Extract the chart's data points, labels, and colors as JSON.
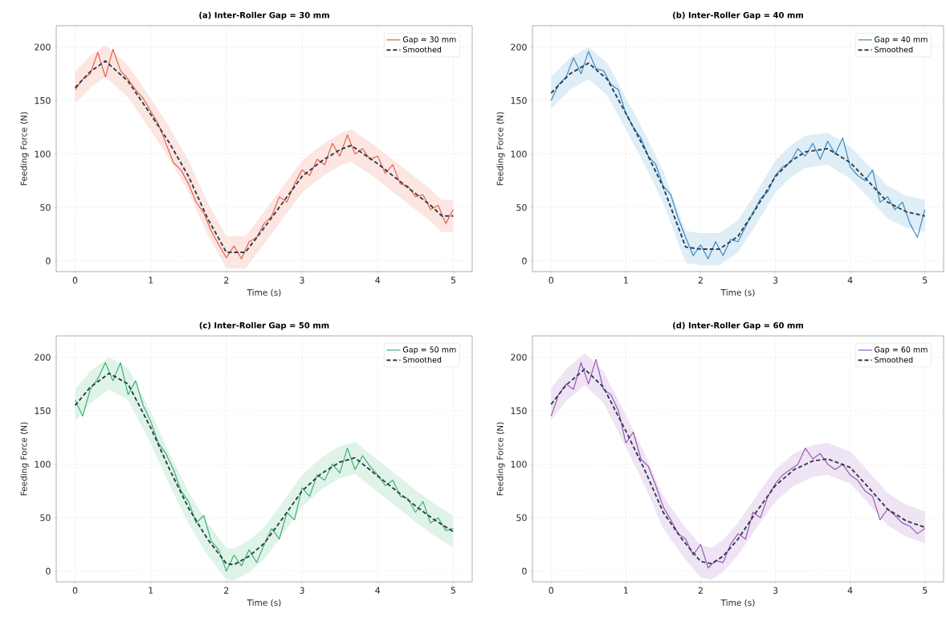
{
  "chart_data": [
    {
      "type": "line",
      "title": "(a) Inter-Roller Gap = 30 mm",
      "xlabel": "Time (s)",
      "ylabel": "Feeding Force (N)",
      "x": [
        0,
        0.1,
        0.2,
        0.3,
        0.4,
        0.5,
        0.6,
        0.7,
        0.8,
        0.9,
        1.0,
        1.1,
        1.2,
        1.3,
        1.4,
        1.5,
        1.6,
        1.7,
        1.8,
        1.9,
        2.0,
        2.1,
        2.2,
        2.3,
        2.4,
        2.5,
        2.6,
        2.7,
        2.8,
        2.9,
        3.0,
        3.1,
        3.2,
        3.3,
        3.4,
        3.5,
        3.6,
        3.7,
        3.8,
        3.9,
        4.0,
        4.1,
        4.2,
        4.3,
        4.4,
        4.5,
        4.6,
        4.7,
        4.8,
        4.9,
        5.0
      ],
      "series": [
        {
          "name": "Gap = 30 mm",
          "color": "#e8604c",
          "values": [
            160,
            170,
            175,
            195,
            172,
            198,
            178,
            170,
            160,
            152,
            140,
            128,
            110,
            92,
            85,
            72,
            55,
            45,
            28,
            15,
            3,
            14,
            2,
            18,
            22,
            35,
            42,
            60,
            55,
            72,
            85,
            80,
            95,
            90,
            110,
            98,
            118,
            100,
            105,
            95,
            98,
            82,
            90,
            72,
            70,
            60,
            62,
            48,
            52,
            35,
            48
          ]
        },
        {
          "name": "Smoothed",
          "color": "#2c3e50",
          "line_style": "dashed",
          "x": [
            0,
            0.2,
            0.4,
            0.7,
            1,
            1.25,
            1.5,
            1.75,
            2,
            2.25,
            2.5,
            2.75,
            3,
            3.25,
            3.5,
            3.65,
            4,
            4.25,
            4.5,
            4.7,
            4.85,
            5
          ],
          "values": [
            162,
            177,
            187,
            168,
            137,
            110,
            79,
            40,
            8,
            8,
            31,
            55,
            79,
            93,
            104,
            108,
            91,
            77,
            63,
            52,
            42,
            42
          ],
          "lower": [
            147,
            162,
            172,
            153,
            122,
            95,
            64,
            25,
            -7,
            -7,
            16,
            40,
            64,
            78,
            89,
            93,
            76,
            62,
            48,
            37,
            27,
            27
          ],
          "upper": [
            177,
            192,
            202,
            183,
            152,
            125,
            94,
            55,
            23,
            23,
            46,
            70,
            94,
            108,
            119,
            123,
            106,
            92,
            78,
            67,
            57,
            57
          ]
        }
      ],
      "xlim": [
        -0.25,
        5.25
      ],
      "ylim": [
        -10,
        220
      ],
      "xticks": [
        0,
        1,
        2,
        3,
        4,
        5
      ],
      "yticks": [
        0,
        50,
        100,
        150,
        200
      ],
      "grid": true,
      "legend": "top right",
      "marker": "none"
    },
    {
      "type": "line",
      "title": "(b) Inter-Roller Gap = 40 mm",
      "xlabel": "Time (s)",
      "ylabel": "Feeding Force (N)",
      "x": [
        0,
        0.1,
        0.2,
        0.3,
        0.4,
        0.5,
        0.6,
        0.7,
        0.8,
        0.9,
        1.0,
        1.1,
        1.2,
        1.3,
        1.4,
        1.5,
        1.6,
        1.7,
        1.8,
        1.9,
        2.0,
        2.1,
        2.2,
        2.3,
        2.4,
        2.5,
        2.6,
        2.7,
        2.8,
        2.9,
        3.0,
        3.1,
        3.2,
        3.3,
        3.4,
        3.5,
        3.6,
        3.7,
        3.8,
        3.9,
        4.0,
        4.1,
        4.2,
        4.3,
        4.4,
        4.5,
        4.6,
        4.7,
        4.8,
        4.9,
        5.0
      ],
      "series": [
        {
          "name": "Gap = 40 mm",
          "color": "#3a8cc4",
          "values": [
            150,
            165,
            172,
            190,
            175,
            196,
            180,
            178,
            165,
            160,
            138,
            125,
            115,
            98,
            90,
            70,
            62,
            40,
            22,
            5,
            15,
            2,
            18,
            5,
            20,
            18,
            32,
            45,
            58,
            65,
            80,
            88,
            92,
            105,
            98,
            110,
            95,
            112,
            100,
            115,
            88,
            80,
            75,
            85,
            55,
            60,
            48,
            55,
            35,
            22,
            48
          ]
        },
        {
          "name": "Smoothed",
          "color": "#2c3e50",
          "line_style": "dashed",
          "x": [
            0,
            0.25,
            0.5,
            0.75,
            1,
            1.25,
            1.5,
            1.8,
            2,
            2.25,
            2.5,
            2.75,
            3,
            3.2,
            3.4,
            3.7,
            4,
            4.25,
            4.5,
            4.75,
            5
          ],
          "values": [
            157,
            175,
            185,
            170,
            138,
            105,
            69,
            13,
            11,
            11,
            23,
            50,
            79,
            93,
            102,
            105,
            92,
            74,
            55,
            46,
            42
          ],
          "lower": [
            142,
            160,
            170,
            155,
            123,
            90,
            54,
            -2,
            -4,
            -4,
            8,
            35,
            64,
            78,
            87,
            90,
            77,
            59,
            40,
            31,
            27
          ],
          "upper": [
            172,
            190,
            200,
            185,
            153,
            120,
            84,
            28,
            26,
            26,
            38,
            65,
            94,
            108,
            117,
            120,
            107,
            89,
            70,
            61,
            57
          ]
        }
      ],
      "xlim": [
        -0.25,
        5.25
      ],
      "ylim": [
        -10,
        220
      ],
      "xticks": [
        0,
        1,
        2,
        3,
        4,
        5
      ],
      "yticks": [
        0,
        50,
        100,
        150,
        200
      ],
      "grid": true,
      "legend": "top right",
      "marker": "none"
    },
    {
      "type": "line",
      "title": "(c) Inter-Roller Gap = 50 mm",
      "xlabel": "Time (s)",
      "ylabel": "Feeding Force (N)",
      "x": [
        0,
        0.1,
        0.2,
        0.3,
        0.4,
        0.5,
        0.6,
        0.7,
        0.8,
        0.9,
        1.0,
        1.1,
        1.2,
        1.3,
        1.4,
        1.5,
        1.6,
        1.7,
        1.8,
        1.9,
        2.0,
        2.1,
        2.2,
        2.3,
        2.4,
        2.5,
        2.6,
        2.7,
        2.8,
        2.9,
        3.0,
        3.1,
        3.2,
        3.3,
        3.4,
        3.5,
        3.6,
        3.7,
        3.8,
        3.9,
        4.0,
        4.1,
        4.2,
        4.3,
        4.4,
        4.5,
        4.6,
        4.7,
        4.8,
        4.9,
        5.0
      ],
      "series": [
        {
          "name": "Gap = 50 mm",
          "color": "#3cb371",
          "values": [
            160,
            145,
            170,
            180,
            195,
            178,
            195,
            165,
            178,
            155,
            140,
            120,
            110,
            95,
            75,
            65,
            45,
            52,
            28,
            20,
            0,
            15,
            5,
            20,
            8,
            25,
            40,
            30,
            55,
            48,
            78,
            70,
            90,
            85,
            100,
            92,
            115,
            95,
            108,
            98,
            90,
            80,
            85,
            70,
            68,
            55,
            65,
            45,
            50,
            38,
            40
          ]
        },
        {
          "name": "Smoothed",
          "color": "#2c3e50",
          "line_style": "dashed",
          "x": [
            0,
            0.2,
            0.45,
            0.7,
            1,
            1.25,
            1.5,
            1.75,
            2,
            2.1,
            2.3,
            2.5,
            2.75,
            3,
            3.25,
            3.5,
            3.7,
            4,
            4.25,
            4.5,
            4.75,
            5
          ],
          "values": [
            155,
            172,
            185,
            175,
            134,
            95,
            59,
            30,
            7,
            6,
            14,
            26,
            50,
            75,
            91,
            102,
            106,
            89,
            75,
            61,
            48,
            37
          ],
          "lower": [
            140,
            157,
            170,
            160,
            119,
            80,
            44,
            15,
            -8,
            -9,
            -1,
            11,
            35,
            60,
            76,
            87,
            91,
            74,
            60,
            46,
            33,
            22
          ],
          "upper": [
            170,
            187,
            200,
            190,
            149,
            110,
            74,
            45,
            22,
            21,
            29,
            41,
            65,
            90,
            106,
            117,
            121,
            104,
            90,
            76,
            63,
            52
          ]
        }
      ],
      "xlim": [
        -0.25,
        5.25
      ],
      "ylim": [
        -10,
        220
      ],
      "xticks": [
        0,
        1,
        2,
        3,
        4,
        5
      ],
      "yticks": [
        0,
        50,
        100,
        150,
        200
      ],
      "grid": true,
      "legend": "top right",
      "marker": "none"
    },
    {
      "type": "line",
      "title": "(d) Inter-Roller Gap = 60 mm",
      "xlabel": "Time (s)",
      "ylabel": "Feeding Force (N)",
      "x": [
        0,
        0.1,
        0.2,
        0.3,
        0.4,
        0.5,
        0.6,
        0.7,
        0.8,
        0.9,
        1.0,
        1.1,
        1.2,
        1.3,
        1.4,
        1.5,
        1.6,
        1.7,
        1.8,
        1.9,
        2.0,
        2.1,
        2.2,
        2.3,
        2.4,
        2.5,
        2.6,
        2.7,
        2.8,
        2.9,
        3.0,
        3.1,
        3.2,
        3.3,
        3.4,
        3.5,
        3.6,
        3.7,
        3.8,
        3.9,
        4.0,
        4.1,
        4.2,
        4.3,
        4.4,
        4.5,
        4.6,
        4.7,
        4.8,
        4.9,
        5.0
      ],
      "series": [
        {
          "name": "Gap = 60 mm",
          "color": "#9b59b6",
          "values": [
            145,
            165,
            175,
            170,
            195,
            175,
            198,
            170,
            165,
            150,
            120,
            130,
            105,
            98,
            80,
            60,
            48,
            35,
            30,
            15,
            25,
            3,
            10,
            8,
            25,
            35,
            30,
            55,
            50,
            70,
            82,
            90,
            95,
            100,
            115,
            105,
            110,
            100,
            95,
            100,
            90,
            85,
            75,
            70,
            48,
            58,
            52,
            45,
            42,
            35,
            40
          ]
        },
        {
          "name": "Smoothed",
          "color": "#2c3e50",
          "line_style": "dashed",
          "x": [
            0,
            0.2,
            0.45,
            0.7,
            1,
            1.25,
            1.5,
            1.75,
            2,
            2.15,
            2.3,
            2.5,
            2.75,
            3,
            3.25,
            3.5,
            3.7,
            4,
            4.25,
            4.5,
            4.75,
            5
          ],
          "values": [
            156,
            174,
            189,
            172,
            131,
            95,
            55,
            30,
            9,
            7,
            14,
            30,
            56,
            80,
            95,
            103,
            105,
            97,
            78,
            58,
            47,
            41
          ],
          "lower": [
            141,
            159,
            174,
            157,
            116,
            80,
            40,
            15,
            -6,
            -8,
            -1,
            15,
            41,
            65,
            80,
            88,
            90,
            82,
            63,
            43,
            32,
            26
          ],
          "upper": [
            171,
            189,
            204,
            187,
            146,
            110,
            70,
            45,
            24,
            22,
            29,
            45,
            71,
            95,
            110,
            118,
            120,
            112,
            93,
            73,
            62,
            56
          ]
        }
      ],
      "xlim": [
        -0.25,
        5.25
      ],
      "ylim": [
        -10,
        220
      ],
      "xticks": [
        0,
        1,
        2,
        3,
        4,
        5
      ],
      "yticks": [
        0,
        50,
        100,
        150,
        200
      ],
      "grid": true,
      "legend": "top right",
      "marker": "none"
    }
  ]
}
